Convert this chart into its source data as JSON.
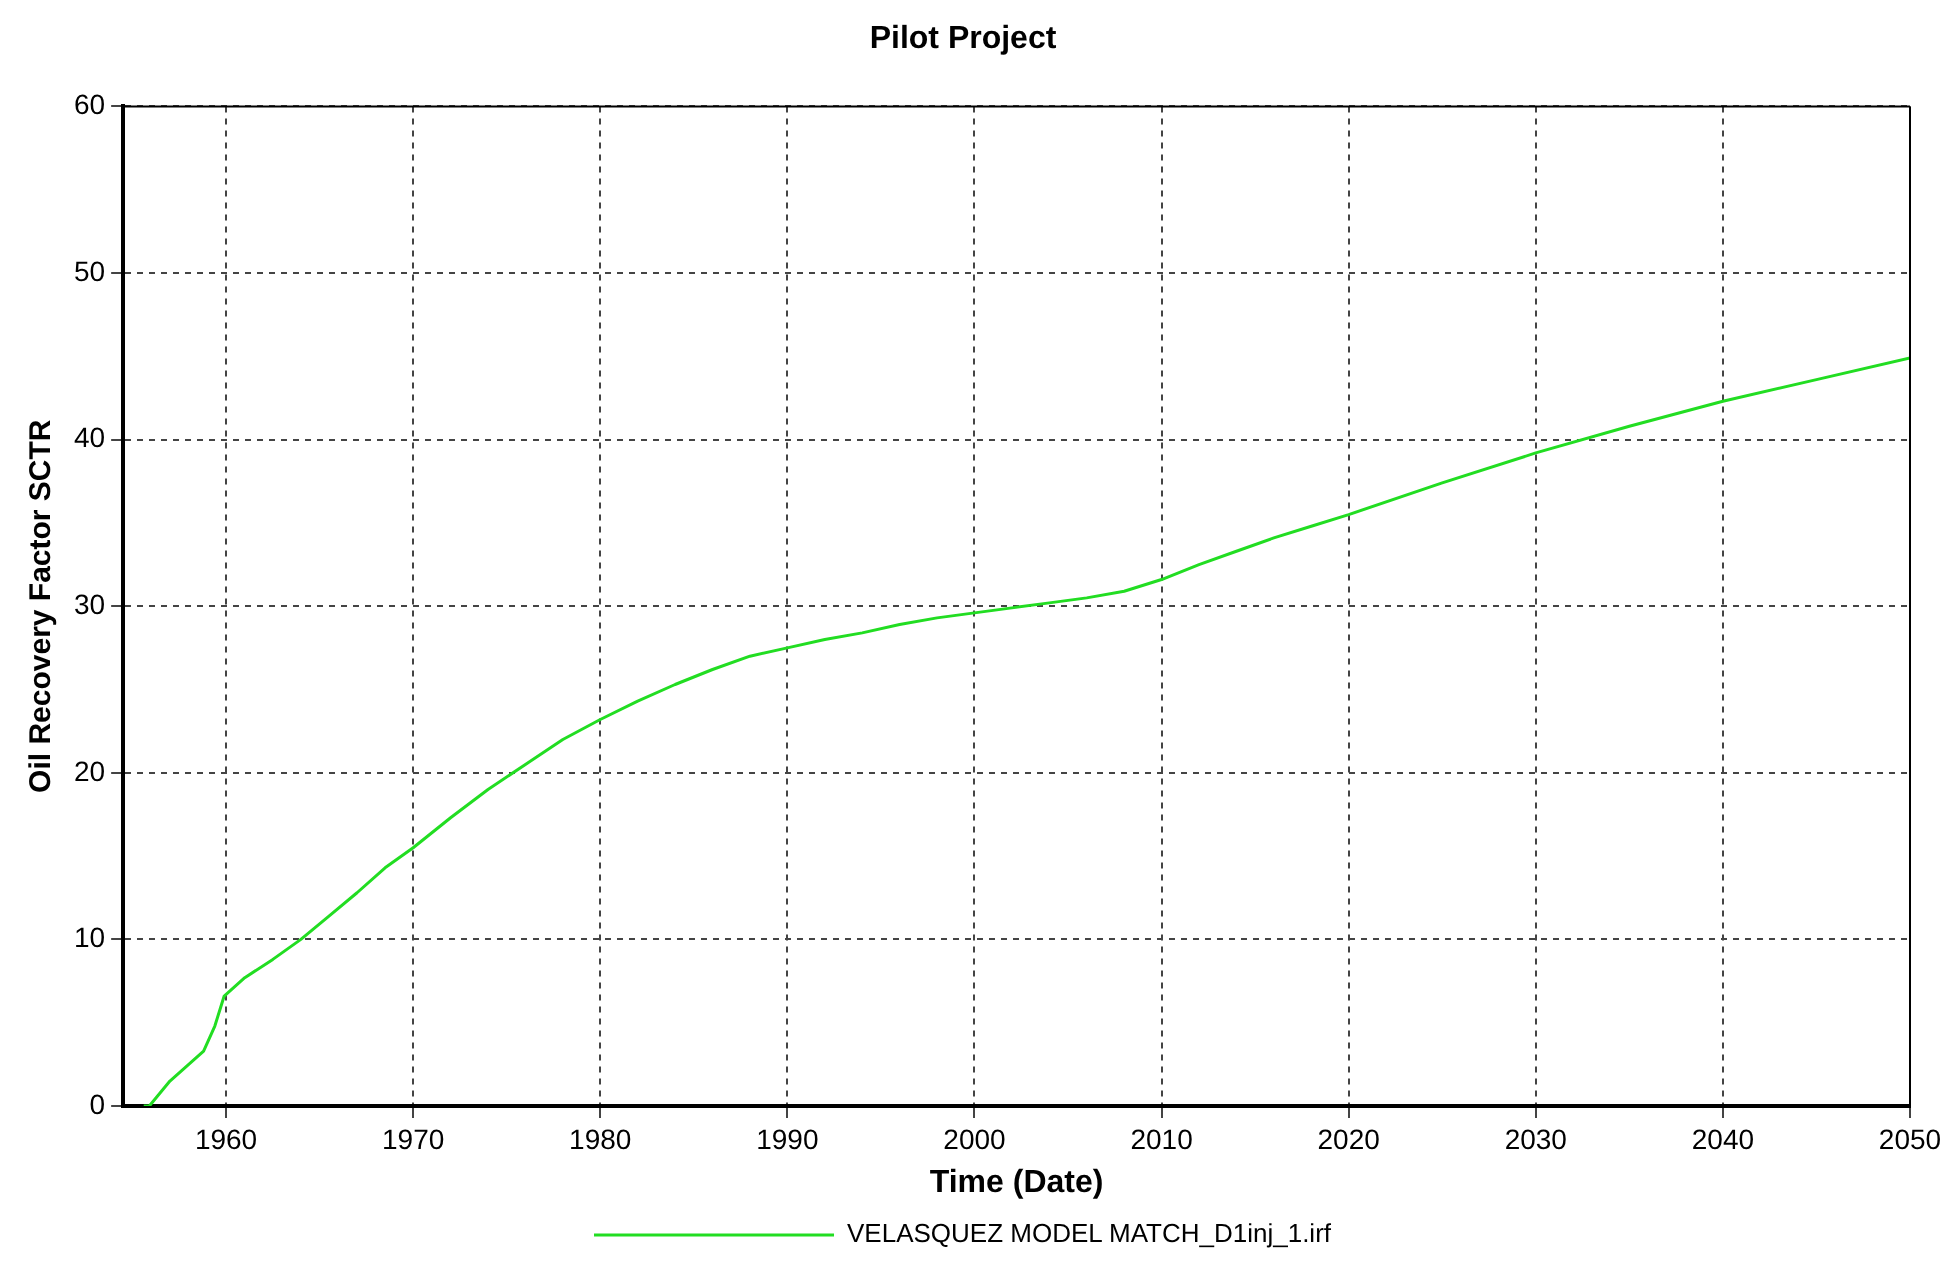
{
  "chart_data": {
    "type": "line",
    "title": "Pilot Project",
    "xlabel": "Time (Date)",
    "ylabel": "Oil Recovery Factor SCTR",
    "x": [
      1955.6,
      1955.9,
      1957,
      1958.8,
      1959.4,
      1959.9,
      1961,
      1962.5,
      1964,
      1965.5,
      1967,
      1968.5,
      1970,
      1972,
      1974,
      1976,
      1978,
      1980,
      1982,
      1984,
      1986,
      1988,
      1990,
      1992,
      1994,
      1996,
      1998,
      2000,
      2002,
      2004,
      2006,
      2008,
      2010,
      2012,
      2014,
      2016,
      2018,
      2020,
      2025,
      2030,
      2035,
      2040,
      2045,
      2050
    ],
    "series": [
      {
        "name": "VELASQUEZ MODEL MATCH_D1inj_1.irf",
        "color": "#22dd22",
        "values": [
          0,
          0,
          1.5,
          3.3,
          4.8,
          6.6,
          7.7,
          8.8,
          10,
          11.4,
          12.8,
          14.3,
          15.5,
          17.3,
          19,
          20.5,
          22,
          23.2,
          24.3,
          25.3,
          26.2,
          27,
          27.5,
          28,
          28.4,
          28.9,
          29.3,
          29.6,
          29.9,
          30.2,
          30.5,
          30.9,
          31.6,
          32.5,
          33.3,
          34.1,
          34.8,
          35.5,
          37.4,
          39.2,
          40.8,
          42.3,
          43.6,
          44.9
        ]
      }
    ],
    "xlim": [
      1954.5,
      2050
    ],
    "xticks": [
      1960,
      1970,
      1980,
      1990,
      2000,
      2010,
      2020,
      2030,
      2040,
      2050
    ],
    "ylim": [
      0,
      60
    ],
    "yticks": [
      0,
      10,
      20,
      30,
      40,
      50,
      60
    ],
    "grid": true,
    "legend": "bottom",
    "marker": "none",
    "line_style": "solid"
  }
}
